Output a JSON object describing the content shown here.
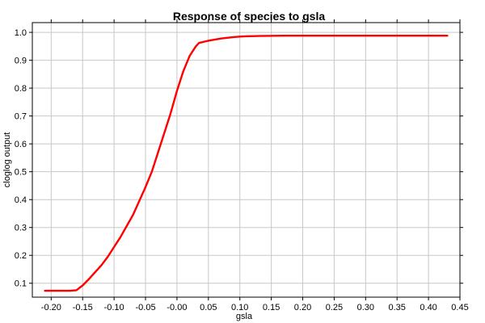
{
  "chart_data": {
    "type": "line",
    "title": "Response of species to gsla",
    "xlabel": "gsla",
    "ylabel": "cloglog output",
    "xlim": [
      -0.23,
      0.45
    ],
    "ylim": [
      0.05,
      1.035
    ],
    "grid": true,
    "x_ticks": [
      -0.2,
      -0.15,
      -0.1,
      -0.05,
      0.0,
      0.05,
      0.1,
      0.15,
      0.2,
      0.25,
      0.3,
      0.35,
      0.4,
      0.45
    ],
    "x_tick_labels": [
      "-0.20",
      "-0.15",
      "-0.10",
      "-0.05",
      "-0.00",
      "0.05",
      "0.10",
      "0.15",
      "0.20",
      "0.25",
      "0.30",
      "0.35",
      "0.40",
      "0.45"
    ],
    "y_ticks": [
      0.1,
      0.2,
      0.3,
      0.4,
      0.5,
      0.6,
      0.7,
      0.8,
      0.9,
      1.0
    ],
    "y_tick_labels": [
      "0.1",
      "0.2",
      "0.3",
      "0.4",
      "0.5",
      "0.6",
      "0.7",
      "0.8",
      "0.9",
      "1.0"
    ],
    "series": [
      {
        "color": "#ff0000",
        "x": [
          -0.21,
          -0.19,
          -0.17,
          -0.16,
          -0.15,
          -0.14,
          -0.13,
          -0.12,
          -0.11,
          -0.1,
          -0.09,
          -0.08,
          -0.07,
          -0.06,
          -0.05,
          -0.04,
          -0.03,
          -0.02,
          -0.01,
          0.0,
          0.01,
          0.02,
          0.03,
          0.035,
          0.05,
          0.07,
          0.09,
          0.1,
          0.11,
          0.13,
          0.17,
          0.2,
          0.3,
          0.4,
          0.43
        ],
        "y": [
          0.073,
          0.073,
          0.073,
          0.075,
          0.092,
          0.115,
          0.14,
          0.165,
          0.195,
          0.23,
          0.265,
          0.305,
          0.345,
          0.395,
          0.445,
          0.5,
          0.57,
          0.64,
          0.71,
          0.79,
          0.86,
          0.915,
          0.95,
          0.962,
          0.97,
          0.978,
          0.983,
          0.985,
          0.986,
          0.987,
          0.988,
          0.988,
          0.988,
          0.988,
          0.988
        ]
      }
    ]
  }
}
